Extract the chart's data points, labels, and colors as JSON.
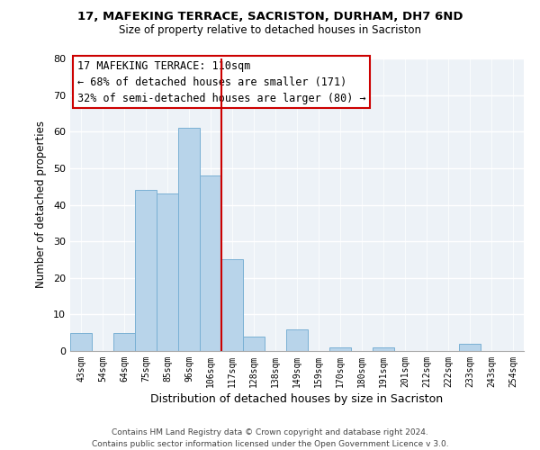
{
  "title1": "17, MAFEKING TERRACE, SACRISTON, DURHAM, DH7 6ND",
  "title2": "Size of property relative to detached houses in Sacriston",
  "xlabel": "Distribution of detached houses by size in Sacriston",
  "ylabel": "Number of detached properties",
  "bin_labels": [
    "43sqm",
    "54sqm",
    "64sqm",
    "75sqm",
    "85sqm",
    "96sqm",
    "106sqm",
    "117sqm",
    "128sqm",
    "138sqm",
    "149sqm",
    "159sqm",
    "170sqm",
    "180sqm",
    "191sqm",
    "201sqm",
    "212sqm",
    "222sqm",
    "233sqm",
    "243sqm",
    "254sqm"
  ],
  "bar_heights": [
    5,
    0,
    5,
    44,
    43,
    61,
    48,
    25,
    4,
    0,
    6,
    0,
    1,
    0,
    1,
    0,
    0,
    0,
    2,
    0,
    0
  ],
  "bar_color": "#b8d4ea",
  "bar_edge_color": "#7ab0d4",
  "vline_color": "#cc0000",
  "ylim": [
    0,
    80
  ],
  "yticks": [
    0,
    10,
    20,
    30,
    40,
    50,
    60,
    70,
    80
  ],
  "annotation_title": "17 MAFEKING TERRACE: 110sqm",
  "annotation_line1": "← 68% of detached houses are smaller (171)",
  "annotation_line2": "32% of semi-detached houses are larger (80) →",
  "box_color": "#cc0000",
  "footer1": "Contains HM Land Registry data © Crown copyright and database right 2024.",
  "footer2": "Contains public sector information licensed under the Open Government Licence v 3.0."
}
